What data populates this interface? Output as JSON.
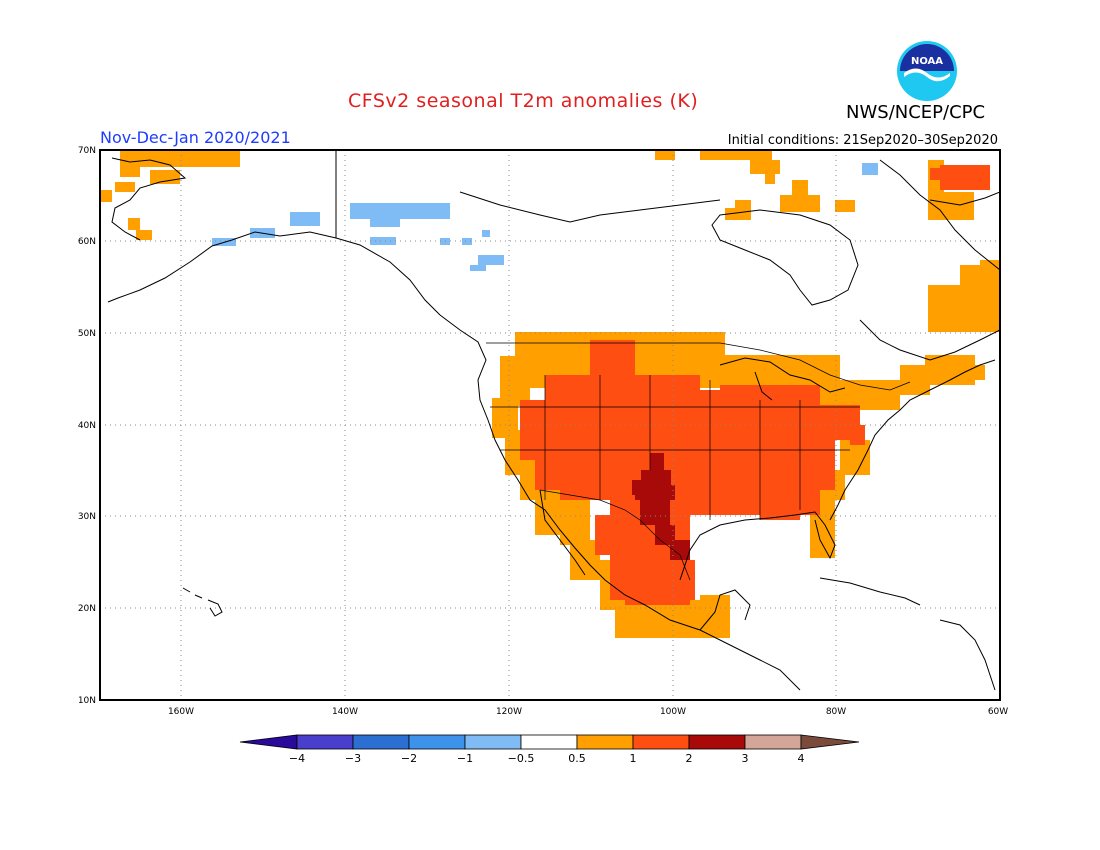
{
  "header": {
    "title": "CFSv2 seasonal T2m anomalies (K)",
    "agency": "NWS/NCEP/CPC",
    "logo_text": "NOAA",
    "period": "Nov-Dec-Jan 2020/2021",
    "initial_conditions": "Initial conditions: 21Sep2020–30Sep2020"
  },
  "axes": {
    "lat_labels": [
      "70N",
      "60N",
      "50N",
      "40N",
      "30N",
      "20N",
      "10N"
    ],
    "lon_labels": [
      "160W",
      "140W",
      "120W",
      "100W",
      "80W",
      "60W"
    ]
  },
  "colorbar": {
    "labels": [
      "−4",
      "−3",
      "−2",
      "−1",
      "−0.5",
      "0.5",
      "1",
      "2",
      "3",
      "4"
    ],
    "colors": [
      "#2a0a9a",
      "#4a3fcc",
      "#2c6fd2",
      "#3d93ec",
      "#7fbbf4",
      "#ffffff",
      "#ffa000",
      "#ff4e12",
      "#a80a0a",
      "#d4a69a",
      "#7a4a3a"
    ]
  },
  "legend_colors": {
    "cold_light": "#7fbbf4",
    "warm_0_5": "#ffa000",
    "warm_1": "#ff4e12",
    "warm_2": "#a80a0a"
  }
}
